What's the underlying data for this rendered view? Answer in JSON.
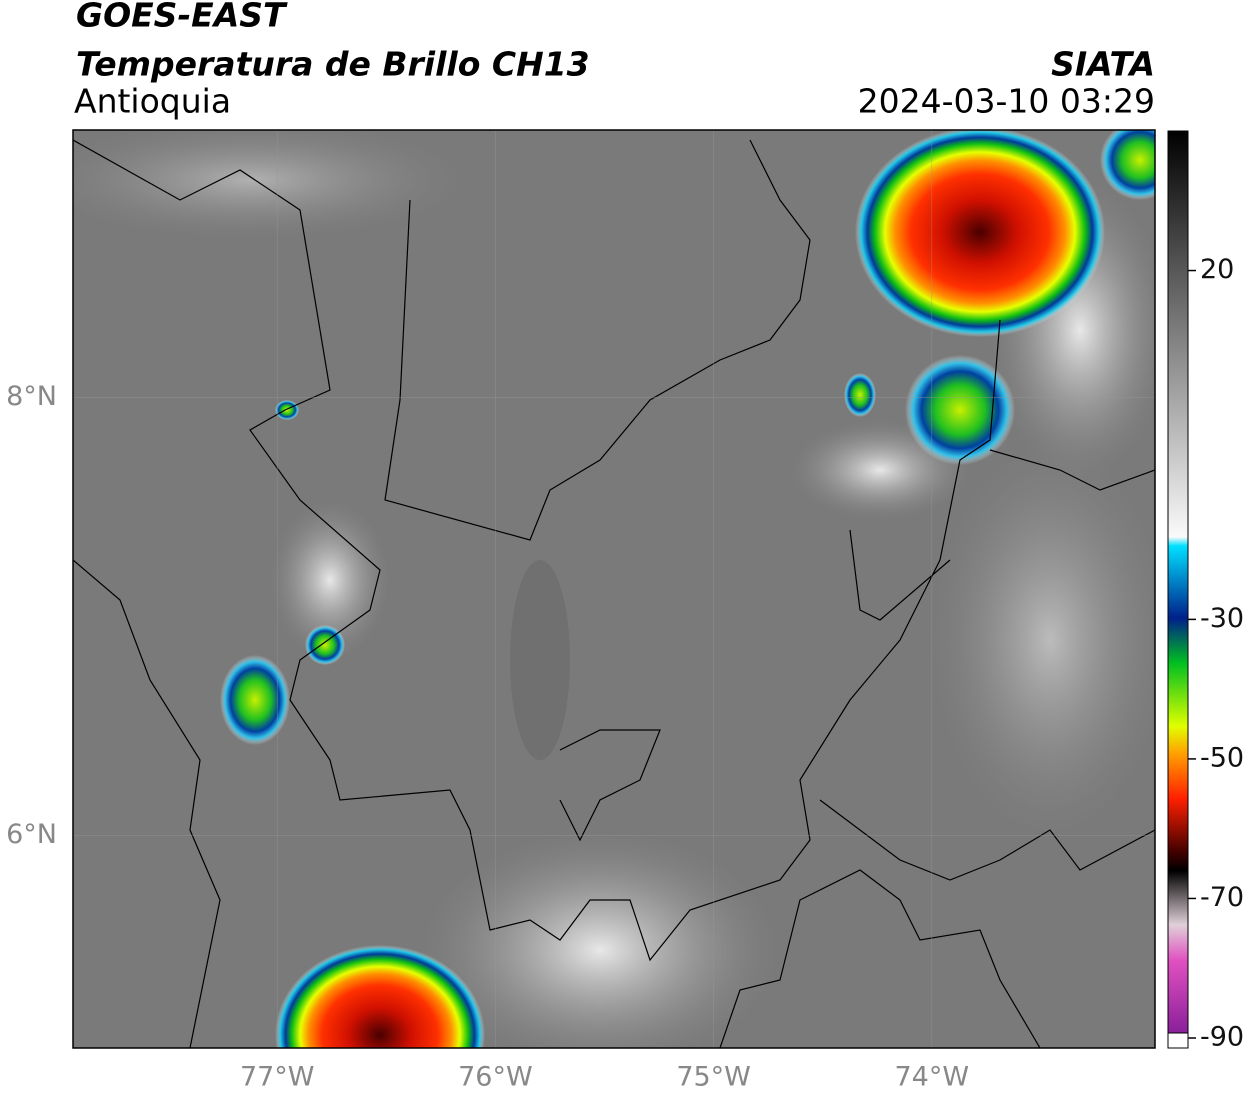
{
  "header": {
    "title": "GOES-EAST",
    "subtitle": "Temperatura de Brillo CH13",
    "region": "Antioquia",
    "source": "SIATA",
    "datetime": "2024-03-10 03:29"
  },
  "map": {
    "xlim": [
      -77.936,
      -72.977
    ],
    "ylim": [
      5.03,
      9.22
    ],
    "grid": true,
    "xticks": [
      {
        "value": -77,
        "label": "77°W"
      },
      {
        "value": -76,
        "label": "76°W"
      },
      {
        "value": -75,
        "label": "75°W"
      },
      {
        "value": -74,
        "label": "74°W"
      }
    ],
    "yticks": [
      {
        "value": 8,
        "label": "8°N"
      },
      {
        "value": 6,
        "label": "6°N"
      }
    ]
  },
  "colorbar": {
    "lim": [
      -90,
      40
    ],
    "ticks": [
      20,
      -30,
      -50,
      -70,
      -90
    ]
  }
}
